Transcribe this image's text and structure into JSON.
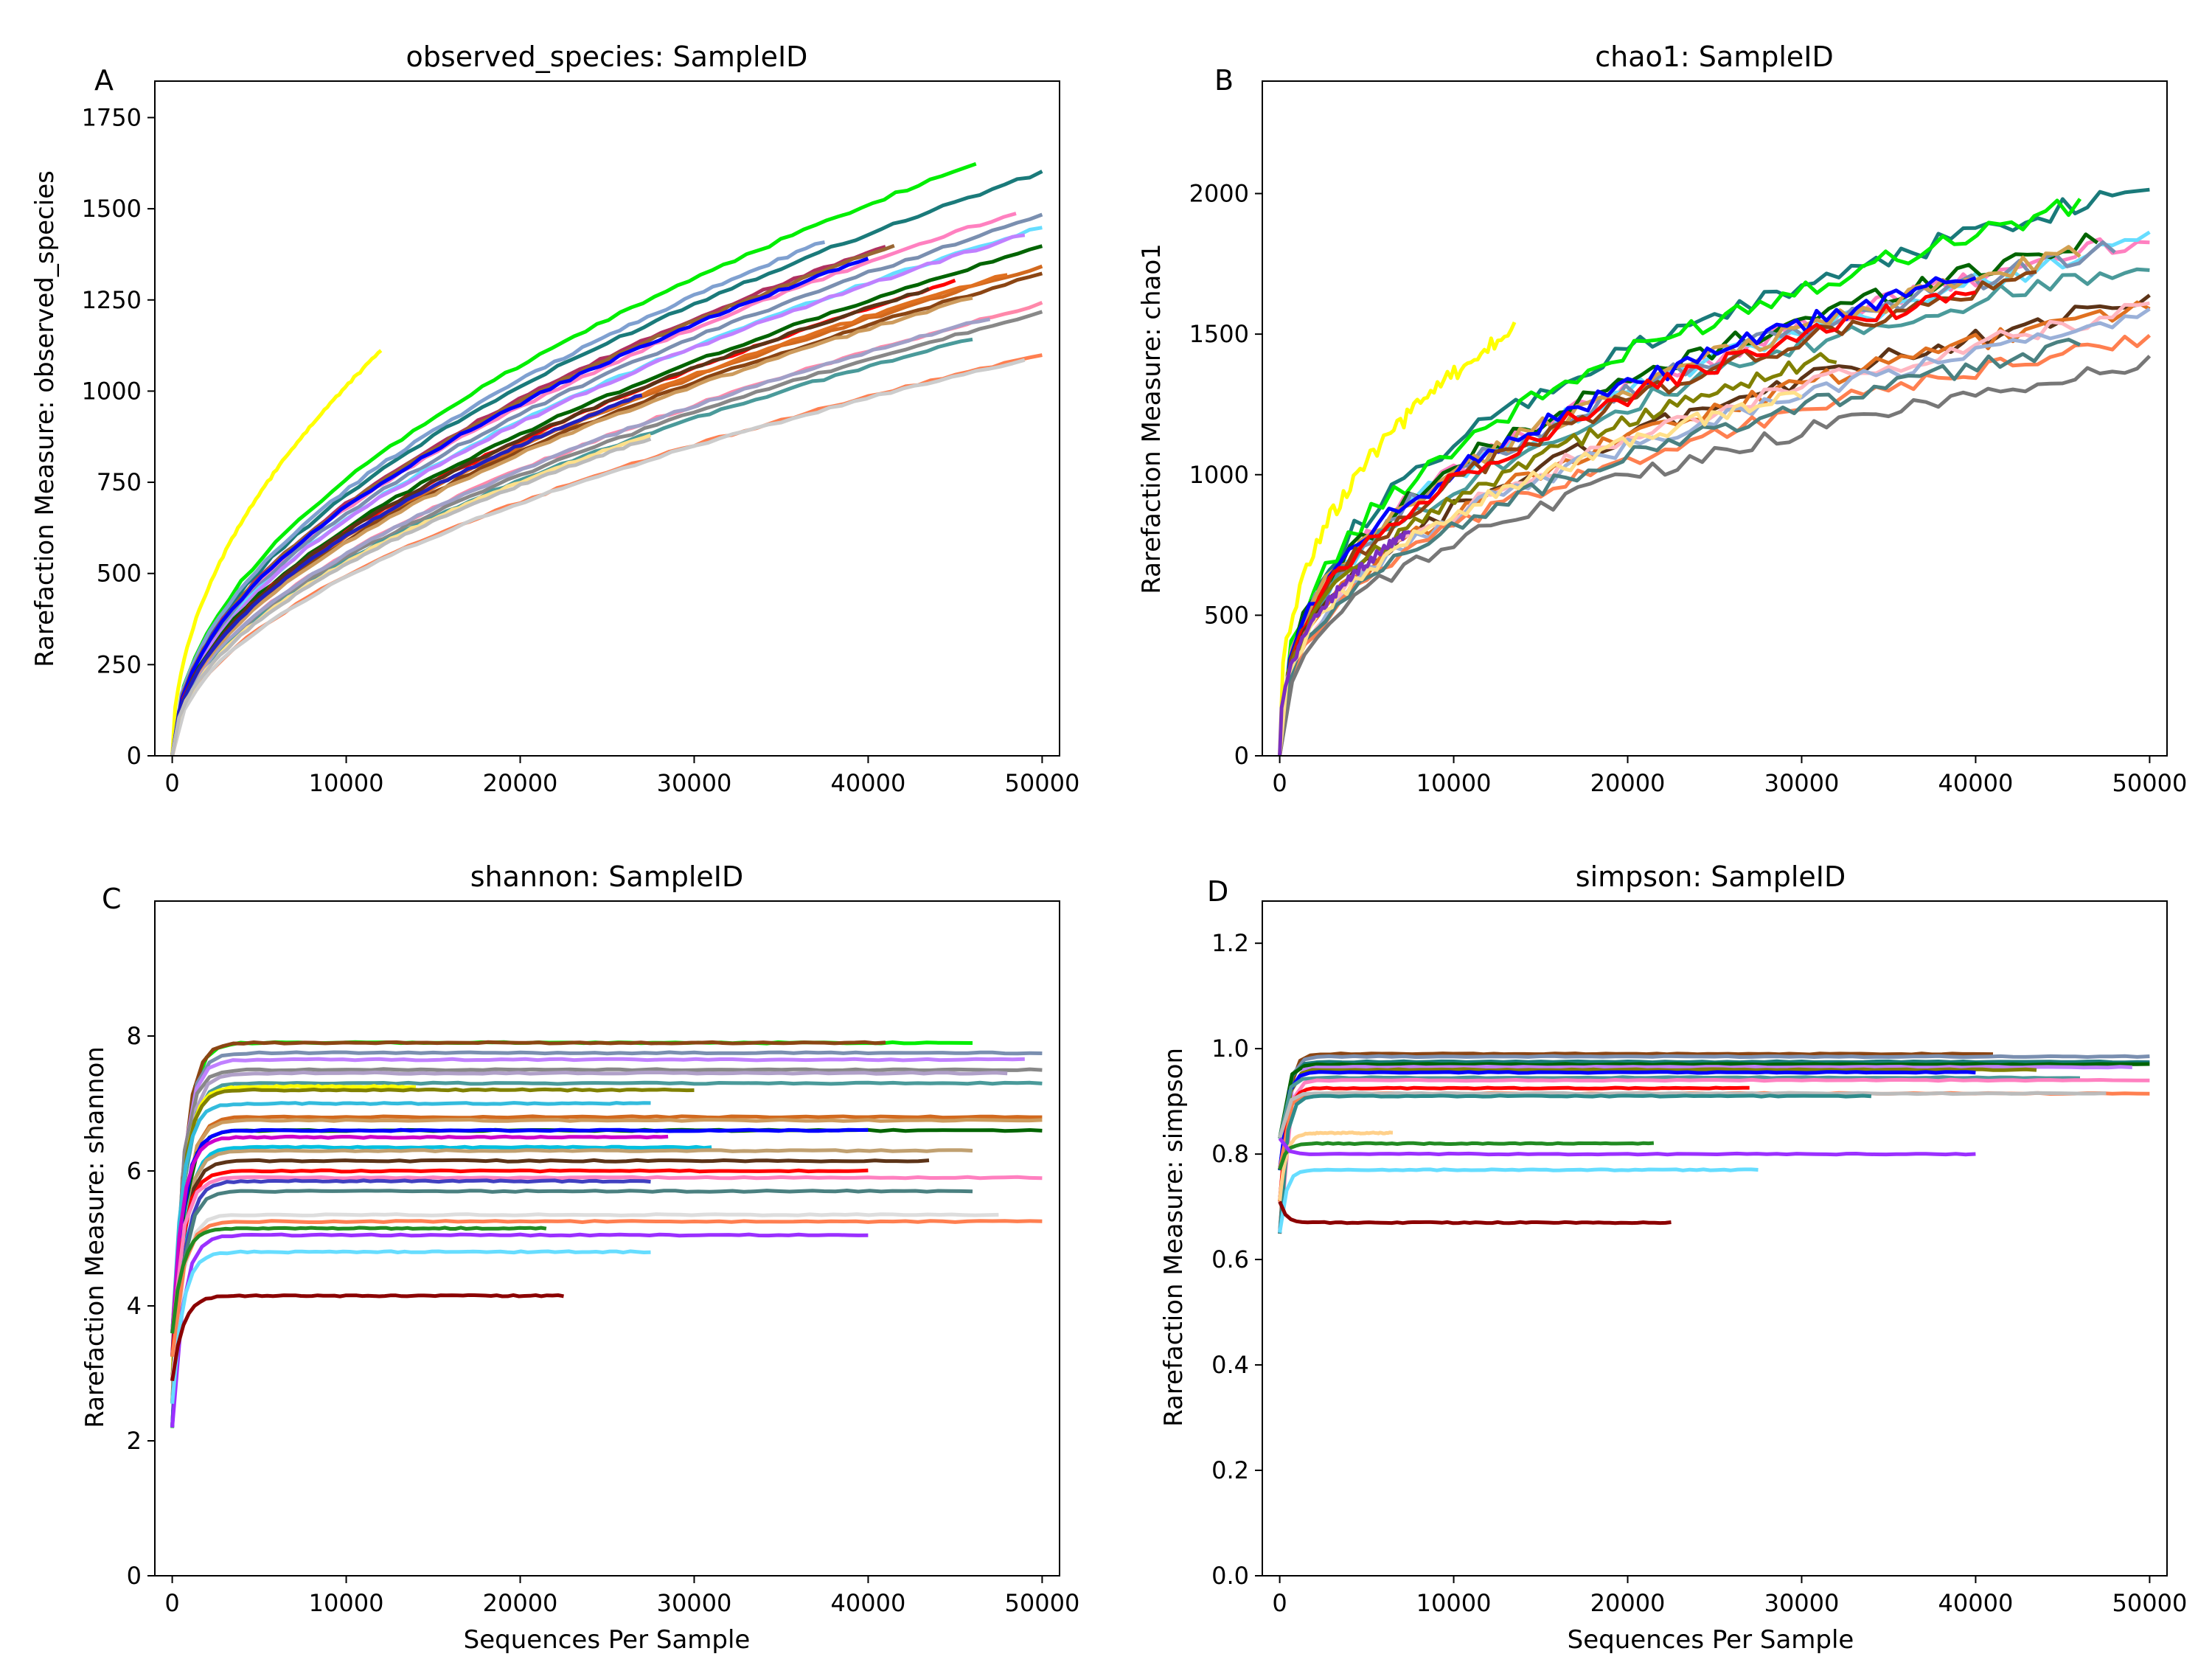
{
  "chart_data": [
    {
      "letter": "A",
      "type": "line",
      "title": "observed_species: SampleID",
      "xlabel": "",
      "ylabel": "Rarefaction Measure: observed_species",
      "xlim": [
        0,
        50000
      ],
      "ylim": [
        0,
        1850
      ],
      "xticks": [
        "0",
        "10000",
        "20000",
        "30000",
        "40000",
        "50000"
      ],
      "xtick_values": [
        0,
        10000,
        20000,
        30000,
        40000,
        50000
      ],
      "yticks": [
        "0",
        "250",
        "500",
        "750",
        "1000",
        "1250",
        "1500",
        "1750"
      ],
      "ytick_values": [
        0,
        250,
        500,
        750,
        1000,
        1250,
        1500,
        1750
      ],
      "grid": false,
      "curve_model": "rarefaction",
      "series": [
        {
          "color": "#00ee00",
          "end_x": 46200,
          "end_y": 1625
        },
        {
          "color": "#1a7a7a",
          "end_x": 50000,
          "end_y": 1600
        },
        {
          "color": "#ff80c0",
          "end_x": 48500,
          "end_y": 1490
        },
        {
          "color": "#7a8fb0",
          "end_x": 50000,
          "end_y": 1480
        },
        {
          "color": "#66ddff",
          "end_x": 50000,
          "end_y": 1450
        },
        {
          "color": "#c080ff",
          "end_x": 49000,
          "end_y": 1430
        },
        {
          "color": "#7fa0d0",
          "end_x": 37500,
          "end_y": 1410
        },
        {
          "color": "#b03060",
          "end_x": 41000,
          "end_y": 1400
        },
        {
          "color": "#996633",
          "end_x": 41500,
          "end_y": 1400
        },
        {
          "color": "#006400",
          "end_x": 50000,
          "end_y": 1395
        },
        {
          "color": "#0000ff",
          "end_x": 40000,
          "end_y": 1365
        },
        {
          "color": "#d2691e",
          "end_x": 50000,
          "end_y": 1340
        },
        {
          "color": "#e07020",
          "end_x": 48000,
          "end_y": 1320
        },
        {
          "color": "#8b4513",
          "end_x": 50000,
          "end_y": 1320
        },
        {
          "color": "#ff0000",
          "end_x": 45000,
          "end_y": 1300
        },
        {
          "color": "#5c3317",
          "end_x": 43500,
          "end_y": 1280
        },
        {
          "color": "#cd9b5d",
          "end_x": 46000,
          "end_y": 1255
        },
        {
          "color": "#ff88aa",
          "end_x": 50000,
          "end_y": 1240
        },
        {
          "color": "#888888",
          "end_x": 50000,
          "end_y": 1215
        },
        {
          "color": "#a0a0c8",
          "end_x": 47000,
          "end_y": 1200
        },
        {
          "color": "#4a9a9a",
          "end_x": 46000,
          "end_y": 1145
        },
        {
          "color": "#ff7f50",
          "end_x": 50000,
          "end_y": 1100
        },
        {
          "color": "#cccccc",
          "end_x": 49000,
          "end_y": 1085
        },
        {
          "color": "#ffff00",
          "end_x": 12000,
          "end_y": 1110
        },
        {
          "color": "#2020c0",
          "end_x": 27000,
          "end_y": 990
        },
        {
          "color": "#ffe08a",
          "end_x": 27500,
          "end_y": 880
        },
        {
          "color": "#bbbbbb",
          "end_x": 27500,
          "end_y": 870
        }
      ]
    },
    {
      "letter": "B",
      "type": "line",
      "title": "chao1: SampleID",
      "xlabel": "",
      "ylabel": "Rarefaction Measure: chao1",
      "xlim": [
        0,
        50000
      ],
      "ylim": [
        0,
        2400
      ],
      "xticks": [
        "0",
        "10000",
        "20000",
        "30000",
        "40000",
        "50000"
      ],
      "xtick_values": [
        0,
        10000,
        20000,
        30000,
        40000,
        50000
      ],
      "yticks": [
        "0",
        "500",
        "1000",
        "1500",
        "2000"
      ],
      "ytick_values": [
        0,
        500,
        1000,
        1500,
        2000
      ],
      "grid": false,
      "curve_model": "rarefaction_noisy",
      "series": [
        {
          "color": "#1a7a7a",
          "end_x": 50000,
          "end_y": 2030
        },
        {
          "color": "#00ee00",
          "end_x": 46000,
          "end_y": 1960
        },
        {
          "color": "#ff80c0",
          "end_x": 50000,
          "end_y": 1850
        },
        {
          "color": "#66ddff",
          "end_x": 50000,
          "end_y": 1830
        },
        {
          "color": "#006400",
          "end_x": 47000,
          "end_y": 1840
        },
        {
          "color": "#7a8fb0",
          "end_x": 48000,
          "end_y": 1810
        },
        {
          "color": "#d2a050",
          "end_x": 46000,
          "end_y": 1790
        },
        {
          "color": "#4a9a9a",
          "end_x": 50000,
          "end_y": 1760
        },
        {
          "color": "#0000ff",
          "end_x": 40000,
          "end_y": 1710
        },
        {
          "color": "#8b4513",
          "end_x": 43500,
          "end_y": 1700
        },
        {
          "color": "#ff0000",
          "end_x": 40000,
          "end_y": 1660
        },
        {
          "color": "#5c3317",
          "end_x": 50000,
          "end_y": 1620
        },
        {
          "color": "#e07020",
          "end_x": 50000,
          "end_y": 1600
        },
        {
          "color": "#ffb6c1",
          "end_x": 50000,
          "end_y": 1590
        },
        {
          "color": "#9ab0d8",
          "end_x": 50000,
          "end_y": 1560
        },
        {
          "color": "#ff7f50",
          "end_x": 50000,
          "end_y": 1490
        },
        {
          "color": "#4a8080",
          "end_x": 46000,
          "end_y": 1460
        },
        {
          "color": "#777777",
          "end_x": 50000,
          "end_y": 1400
        },
        {
          "color": "#ffff00",
          "end_x": 13500,
          "end_y": 1520
        },
        {
          "color": "#808000",
          "end_x": 32000,
          "end_y": 1420
        },
        {
          "color": "#ffe08a",
          "end_x": 30000,
          "end_y": 1300
        },
        {
          "color": "#7b2fbe",
          "end_x": 7500,
          "end_y": 800
        }
      ]
    },
    {
      "letter": "C",
      "type": "line",
      "title": "shannon: SampleID",
      "xlabel": "Sequences Per Sample",
      "ylabel": "Rarefaction Measure: shannon",
      "xlim": [
        0,
        50000
      ],
      "ylim": [
        0,
        10
      ],
      "xticks": [
        "0",
        "10000",
        "20000",
        "30000",
        "40000",
        "50000"
      ],
      "xtick_values": [
        0,
        10000,
        20000,
        30000,
        40000,
        50000
      ],
      "yticks": [
        "0",
        "2",
        "4",
        "6",
        "8"
      ],
      "ytick_values": [
        0,
        2,
        4,
        6,
        8
      ],
      "grid": false,
      "curve_model": "plateau",
      "series": [
        {
          "color": "#00ee00",
          "end_x": 46000,
          "end_y": 7.9
        },
        {
          "color": "#8b4513",
          "end_x": 41000,
          "end_y": 7.9
        },
        {
          "color": "#7a8fb0",
          "end_x": 50000,
          "end_y": 7.75
        },
        {
          "color": "#c080ff",
          "end_x": 49000,
          "end_y": 7.65
        },
        {
          "color": "#888888",
          "end_x": 50000,
          "end_y": 7.5
        },
        {
          "color": "#b0a0c8",
          "end_x": 48000,
          "end_y": 7.45
        },
        {
          "color": "#4a9a9a",
          "end_x": 50000,
          "end_y": 7.3
        },
        {
          "color": "#ffff00",
          "end_x": 14000,
          "end_y": 7.25
        },
        {
          "color": "#808000",
          "end_x": 30000,
          "end_y": 7.2
        },
        {
          "color": "#33bbdd",
          "end_x": 27500,
          "end_y": 7.0
        },
        {
          "color": "#d2691e",
          "end_x": 50000,
          "end_y": 6.8
        },
        {
          "color": "#cd9b5d",
          "end_x": 50000,
          "end_y": 6.75
        },
        {
          "color": "#006400",
          "end_x": 50000,
          "end_y": 6.6
        },
        {
          "color": "#0000ff",
          "end_x": 40000,
          "end_y": 6.6
        },
        {
          "color": "#cc00cc",
          "end_x": 28500,
          "end_y": 6.5
        },
        {
          "color": "#00c0e0",
          "end_x": 31000,
          "end_y": 6.35
        },
        {
          "color": "#c0a070",
          "end_x": 46000,
          "end_y": 6.3
        },
        {
          "color": "#5c3317",
          "end_x": 43500,
          "end_y": 6.15
        },
        {
          "color": "#ff0000",
          "end_x": 40000,
          "end_y": 6.0
        },
        {
          "color": "#ff80c0",
          "end_x": 50000,
          "end_y": 5.9
        },
        {
          "color": "#4040c0",
          "end_x": 27500,
          "end_y": 5.85
        },
        {
          "color": "#4a8080",
          "end_x": 46000,
          "end_y": 5.7
        },
        {
          "color": "#dddddd",
          "end_x": 47500,
          "end_y": 5.35
        },
        {
          "color": "#ff7f50",
          "end_x": 50000,
          "end_y": 5.25
        },
        {
          "color": "#228b22",
          "end_x": 21500,
          "end_y": 5.15
        },
        {
          "color": "#9b30ff",
          "end_x": 40000,
          "end_y": 5.05
        },
        {
          "color": "#66ddff",
          "end_x": 27500,
          "end_y": 4.8
        },
        {
          "color": "#8b0000",
          "end_x": 22500,
          "end_y": 4.15
        }
      ]
    },
    {
      "letter": "D",
      "type": "line",
      "title": "simpson: SampleID",
      "xlabel": "Sequences Per Sample",
      "ylabel": "Rarefaction Measure: simpson",
      "xlim": [
        0,
        50000
      ],
      "ylim": [
        0,
        1.28
      ],
      "xticks": [
        "0",
        "10000",
        "20000",
        "30000",
        "40000",
        "50000"
      ],
      "xtick_values": [
        0,
        10000,
        20000,
        30000,
        40000,
        50000
      ],
      "yticks": [
        "0.0",
        "0.2",
        "0.4",
        "0.6",
        "0.8",
        "1.0",
        "1.2"
      ],
      "ytick_values": [
        0,
        0.2,
        0.4,
        0.6,
        0.8,
        1.0,
        1.2
      ],
      "grid": false,
      "curve_model": "step",
      "series": [
        {
          "color": "#8b4513",
          "end_x": 41000,
          "end_y": 0.99
        },
        {
          "color": "#7a8fb0",
          "end_x": 50000,
          "end_y": 0.985
        },
        {
          "color": "#1a7a7a",
          "end_x": 50000,
          "end_y": 0.975
        },
        {
          "color": "#006400",
          "end_x": 50000,
          "end_y": 0.97
        },
        {
          "color": "#c080ff",
          "end_x": 49000,
          "end_y": 0.965
        },
        {
          "color": "#808000",
          "end_x": 43500,
          "end_y": 0.96
        },
        {
          "color": "#0000ff",
          "end_x": 40000,
          "end_y": 0.955
        },
        {
          "color": "#4a9a9a",
          "end_x": 46000,
          "end_y": 0.945
        },
        {
          "color": "#ff80c0",
          "end_x": 50000,
          "end_y": 0.94
        },
        {
          "color": "#ff0000",
          "end_x": 27000,
          "end_y": 0.925
        },
        {
          "color": "#ff7f50",
          "end_x": 50000,
          "end_y": 0.915
        },
        {
          "color": "#bbbbbb",
          "end_x": 47500,
          "end_y": 0.915
        },
        {
          "color": "#2e8b8b",
          "end_x": 34000,
          "end_y": 0.91
        },
        {
          "color": "#ffd08a",
          "end_x": 6500,
          "end_y": 0.84
        },
        {
          "color": "#228b22",
          "end_x": 21500,
          "end_y": 0.82
        },
        {
          "color": "#9b30ff",
          "end_x": 40000,
          "end_y": 0.8
        },
        {
          "color": "#66ddff",
          "end_x": 27500,
          "end_y": 0.77
        },
        {
          "color": "#8b0000",
          "end_x": 22500,
          "end_y": 0.67
        }
      ]
    }
  ]
}
